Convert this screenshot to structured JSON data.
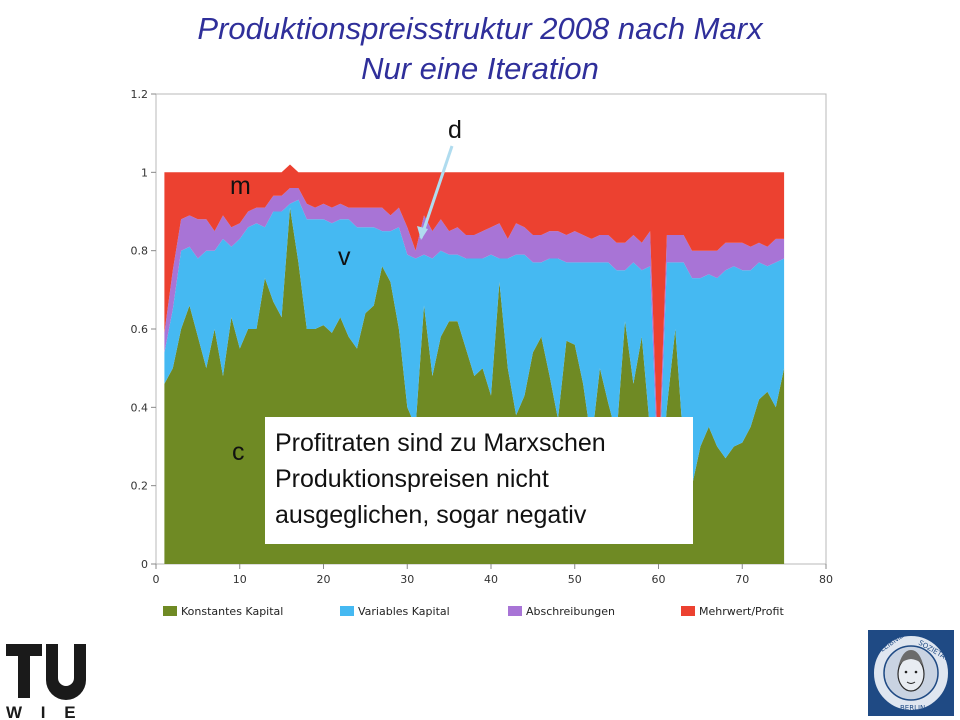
{
  "title_line1": "Produktionspreisstruktur 2008 nach Marx",
  "title_line2": "Nur eine Iteration",
  "annotations": {
    "m": "m",
    "v": "v",
    "d": "d",
    "c": "c"
  },
  "note": {
    "line1": "Profitraten sind zu Marxschen",
    "line2": "Produktionspreisen nicht",
    "line3": "ausgeglichen, sogar negativ"
  },
  "logo_tu": {
    "text": "TU",
    "sub": "W I E N"
  },
  "logo_leibniz": {
    "text": "LEIBNIZ-SOZIETÄT BERLIN"
  },
  "colors": {
    "konstantes": "#6f8a24",
    "variables": "#45b9f2",
    "abschreibungen": "#a874d6",
    "mehrwert": "#ec4130",
    "title": "#2f2f9a"
  },
  "chart_data": {
    "type": "area",
    "stacked": true,
    "x": [
      1,
      2,
      3,
      4,
      5,
      6,
      7,
      8,
      9,
      10,
      11,
      12,
      13,
      14,
      15,
      16,
      17,
      18,
      19,
      20,
      21,
      22,
      23,
      24,
      25,
      26,
      27,
      28,
      29,
      30,
      31,
      32,
      33,
      34,
      35,
      36,
      37,
      38,
      39,
      40,
      41,
      42,
      43,
      44,
      45,
      46,
      47,
      48,
      49,
      50,
      51,
      52,
      53,
      54,
      55,
      56,
      57,
      58,
      59,
      60,
      61,
      62,
      63,
      64,
      65,
      66,
      67,
      68,
      69,
      70,
      71,
      72,
      73,
      74,
      75
    ],
    "xlim": [
      0,
      80
    ],
    "ylim": [
      0,
      1.2
    ],
    "xticks": [
      "0",
      "10",
      "20",
      "30",
      "40",
      "50",
      "60",
      "70",
      "80"
    ],
    "yticks": [
      "0",
      "0.2",
      "0.4",
      "0.6",
      "0.8",
      "1",
      "1.2"
    ],
    "legend_position": "bottom",
    "grid": false,
    "series": [
      {
        "name": "Konstantes Kapital",
        "values": [
          0.46,
          0.5,
          0.6,
          0.66,
          0.58,
          0.5,
          0.6,
          0.48,
          0.63,
          0.55,
          0.6,
          0.6,
          0.73,
          0.67,
          0.63,
          0.91,
          0.77,
          0.6,
          0.6,
          0.61,
          0.59,
          0.63,
          0.58,
          0.55,
          0.64,
          0.66,
          0.76,
          0.72,
          0.6,
          0.4,
          0.35,
          0.66,
          0.48,
          0.58,
          0.62,
          0.62,
          0.55,
          0.48,
          0.5,
          0.43,
          0.72,
          0.5,
          0.38,
          0.43,
          0.54,
          0.58,
          0.48,
          0.37,
          0.57,
          0.56,
          0.46,
          0.31,
          0.5,
          0.41,
          0.33,
          0.62,
          0.46,
          0.58,
          0.34,
          0.15,
          0.4,
          0.6,
          0.3,
          0.2,
          0.3,
          0.35,
          0.3,
          0.27,
          0.3,
          0.31,
          0.35,
          0.42,
          0.44,
          0.4,
          0.5
        ]
      },
      {
        "name": "Variables Kapital",
        "values": [
          0.08,
          0.15,
          0.2,
          0.15,
          0.2,
          0.3,
          0.2,
          0.35,
          0.18,
          0.28,
          0.26,
          0.27,
          0.13,
          0.23,
          0.27,
          0.01,
          0.16,
          0.28,
          0.28,
          0.27,
          0.28,
          0.25,
          0.3,
          0.31,
          0.22,
          0.2,
          0.09,
          0.13,
          0.26,
          0.39,
          0.43,
          0.13,
          0.3,
          0.22,
          0.17,
          0.17,
          0.23,
          0.3,
          0.28,
          0.36,
          0.06,
          0.28,
          0.41,
          0.36,
          0.23,
          0.19,
          0.3,
          0.41,
          0.2,
          0.21,
          0.31,
          0.46,
          0.27,
          0.36,
          0.42,
          0.13,
          0.31,
          0.17,
          0.42,
          0.03,
          0.37,
          0.17,
          0.47,
          0.53,
          0.43,
          0.39,
          0.43,
          0.48,
          0.46,
          0.44,
          0.4,
          0.35,
          0.32,
          0.37,
          0.28
        ]
      },
      {
        "name": "Abschreibungen",
        "values": [
          0.05,
          0.1,
          0.08,
          0.08,
          0.1,
          0.08,
          0.05,
          0.06,
          0.05,
          0.04,
          0.04,
          0.04,
          0.05,
          0.04,
          0.04,
          0.04,
          0.03,
          0.04,
          0.03,
          0.04,
          0.04,
          0.04,
          0.03,
          0.05,
          0.05,
          0.05,
          0.06,
          0.04,
          0.05,
          0.07,
          0.02,
          0.1,
          0.07,
          0.08,
          0.06,
          0.07,
          0.06,
          0.06,
          0.07,
          0.07,
          0.09,
          0.05,
          0.08,
          0.07,
          0.07,
          0.07,
          0.07,
          0.07,
          0.07,
          0.08,
          0.07,
          0.06,
          0.07,
          0.07,
          0.07,
          0.07,
          0.07,
          0.07,
          0.09,
          0.06,
          0.07,
          0.07,
          0.07,
          0.07,
          0.07,
          0.06,
          0.07,
          0.07,
          0.06,
          0.07,
          0.06,
          0.05,
          0.05,
          0.06,
          0.05
        ]
      },
      {
        "name": "Mehrwert/Profit",
        "values": [
          0.41,
          0.25,
          0.12,
          0.11,
          0.12,
          0.12,
          0.15,
          0.11,
          0.14,
          0.13,
          0.1,
          0.09,
          0.09,
          0.06,
          0.06,
          0.06,
          0.04,
          0.08,
          0.09,
          0.08,
          0.09,
          0.08,
          0.09,
          0.09,
          0.09,
          0.09,
          0.09,
          0.11,
          0.09,
          0.14,
          0.2,
          0.11,
          0.15,
          0.12,
          0.15,
          0.14,
          0.16,
          0.16,
          0.15,
          0.14,
          0.13,
          0.17,
          0.13,
          0.14,
          0.16,
          0.16,
          0.15,
          0.15,
          0.16,
          0.15,
          0.16,
          0.17,
          0.16,
          0.16,
          0.18,
          0.18,
          0.16,
          0.18,
          0.15,
          0.76,
          0.16,
          0.16,
          0.16,
          0.2,
          0.2,
          0.2,
          0.2,
          0.18,
          0.18,
          0.18,
          0.19,
          0.18,
          0.19,
          0.17,
          0.17
        ]
      }
    ]
  }
}
